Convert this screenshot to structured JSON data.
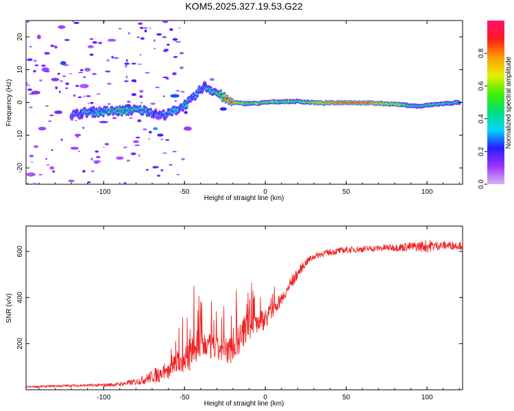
{
  "title": "KOM5.2025.327.19.53.G22",
  "chart_data": [
    {
      "type": "heatmap",
      "name": "spectrogram",
      "xlabel": "Height of straight line (km)",
      "ylabel": "Frequency (Hz)",
      "xlim": [
        -148,
        122
      ],
      "ylim": [
        -25,
        25
      ],
      "xticks": [
        -100,
        -50,
        0,
        50,
        100
      ],
      "yticks": [
        -20,
        -10,
        0,
        10,
        20
      ],
      "colorbar": {
        "label": "Normalized spectral amplitude",
        "range": [
          0,
          1
        ],
        "ticks": [
          "0.0",
          "0.2",
          "0.4",
          "0.6",
          "0.8"
        ],
        "stops": [
          "#d4b6f2",
          "#9a34ff",
          "#2a1cff",
          "#00d8ff",
          "#00e07a",
          "#44f000",
          "#e8f000",
          "#ff9a00",
          "#ff1a1a",
          "#ff1070"
        ]
      },
      "main_trace": [
        {
          "x": -120,
          "f": -3.9,
          "a": 0.25
        },
        {
          "x": -110,
          "f": -3.0,
          "a": 0.35
        },
        {
          "x": -100,
          "f": -2.8,
          "a": 0.4
        },
        {
          "x": -90,
          "f": -2.6,
          "a": 0.45
        },
        {
          "x": -80,
          "f": -2.3,
          "a": 0.4
        },
        {
          "x": -72,
          "f": -2.6,
          "a": 0.35
        },
        {
          "x": -66,
          "f": -4.0,
          "a": 0.25
        },
        {
          "x": -60,
          "f": -3.5,
          "a": 0.3
        },
        {
          "x": -52,
          "f": -1.5,
          "a": 0.4
        },
        {
          "x": -45,
          "f": 1.0,
          "a": 0.35
        },
        {
          "x": -38,
          "f": 5.0,
          "a": 0.3
        },
        {
          "x": -30,
          "f": 3.0,
          "a": 0.45
        },
        {
          "x": -22,
          "f": 0.2,
          "a": 0.85
        },
        {
          "x": -15,
          "f": -0.3,
          "a": 0.6
        },
        {
          "x": -5,
          "f": -0.3,
          "a": 0.55
        },
        {
          "x": 5,
          "f": 0.2,
          "a": 0.55
        },
        {
          "x": 20,
          "f": 0.3,
          "a": 0.5
        },
        {
          "x": 35,
          "f": -0.2,
          "a": 0.7
        },
        {
          "x": 50,
          "f": 0.0,
          "a": 0.95
        },
        {
          "x": 65,
          "f": -0.2,
          "a": 0.85
        },
        {
          "x": 80,
          "f": -0.5,
          "a": 0.6
        },
        {
          "x": 95,
          "f": -1.2,
          "a": 0.4
        },
        {
          "x": 105,
          "f": -0.6,
          "a": 0.45
        },
        {
          "x": 120,
          "f": 0.0,
          "a": 0.35
        }
      ],
      "scatter_blobs": [
        {
          "x": -140,
          "f": 20,
          "a": 0.1
        },
        {
          "x": -135,
          "f": 15,
          "a": 0.15
        },
        {
          "x": -130,
          "f": 7,
          "a": 0.12
        },
        {
          "x": -125,
          "f": 12,
          "a": 0.25
        },
        {
          "x": -128,
          "f": -3,
          "a": 0.15
        },
        {
          "x": -138,
          "f": -8,
          "a": 0.1
        },
        {
          "x": -118,
          "f": -14,
          "a": 0.1
        },
        {
          "x": -110,
          "f": 10,
          "a": 0.08
        },
        {
          "x": -104,
          "f": -18,
          "a": 0.08
        },
        {
          "x": -90,
          "f": -17,
          "a": 0.08
        },
        {
          "x": -145,
          "f": -22,
          "a": 0.08
        },
        {
          "x": -132,
          "f": -20,
          "a": 0.08
        },
        {
          "x": -142,
          "f": 3,
          "a": 0.12
        },
        {
          "x": -126,
          "f": 23,
          "a": 0.1
        },
        {
          "x": -112,
          "f": 5,
          "a": 0.08
        },
        {
          "x": -80,
          "f": -12,
          "a": 0.08
        },
        {
          "x": -95,
          "f": 19,
          "a": 0.08
        },
        {
          "x": -68,
          "f": -8,
          "a": 0.3
        },
        {
          "x": -65,
          "f": -10,
          "a": 0.2
        },
        {
          "x": -56,
          "f": 2,
          "a": 0.25
        },
        {
          "x": -48,
          "f": -8,
          "a": 0.1
        },
        {
          "x": -33,
          "f": 7,
          "a": 0.08
        },
        {
          "x": -26,
          "f": -2,
          "a": 0.2
        },
        {
          "x": -120,
          "f": -24,
          "a": 0.08
        },
        {
          "x": -100,
          "f": -6,
          "a": 0.15
        },
        {
          "x": -85,
          "f": -1,
          "a": 0.2
        },
        {
          "x": -136,
          "f": 10,
          "a": 0.1
        },
        {
          "x": -146,
          "f": 13,
          "a": 0.08
        },
        {
          "x": -116,
          "f": -10,
          "a": 0.1
        },
        {
          "x": -108,
          "f": 17,
          "a": 0.08
        }
      ]
    },
    {
      "type": "line",
      "name": "snr",
      "xlabel": "Height of straight line (km)",
      "ylabel": "SNR (v/v)",
      "xlim": [
        -148,
        122
      ],
      "ylim": [
        0,
        710
      ],
      "xticks": [
        -100,
        -50,
        0,
        50,
        100
      ],
      "yticks": [
        200,
        400,
        600
      ],
      "color": "#ee2222",
      "series": [
        {
          "name": "SNR",
          "x": [
            -148,
            -140,
            -130,
            -120,
            -110,
            -100,
            -90,
            -80,
            -75,
            -70,
            -65,
            -60,
            -56,
            -52,
            -48,
            -44,
            -40,
            -37,
            -34,
            -30,
            -26,
            -22,
            -19,
            -16,
            -13,
            -10,
            -7,
            -4,
            -1,
            2,
            5,
            8,
            11,
            14,
            17,
            20,
            23,
            26,
            30,
            35,
            40,
            45,
            50,
            55,
            60,
            65,
            70,
            75,
            80,
            85,
            90,
            95,
            98,
            100,
            103,
            106,
            110,
            114,
            118,
            122
          ],
          "y": [
            12,
            14,
            16,
            18,
            19,
            20,
            24,
            34,
            44,
            58,
            70,
            82,
            118,
            136,
            156,
            182,
            200,
            206,
            196,
            186,
            178,
            186,
            206,
            232,
            262,
            278,
            296,
            306,
            314,
            332,
            360,
            382,
            410,
            442,
            472,
            504,
            534,
            558,
            578,
            590,
            596,
            602,
            606,
            608,
            610,
            612,
            614,
            616,
            617,
            618,
            620,
            622,
            623,
            624,
            624,
            625,
            626,
            626,
            626,
            626
          ],
          "noise": [
            4,
            5,
            5,
            6,
            6,
            7,
            9,
            14,
            20,
            28,
            40,
            60,
            80,
            120,
            160,
            150,
            130,
            120,
            110,
            100,
            110,
            120,
            130,
            140,
            120,
            110,
            100,
            95,
            90,
            80,
            70,
            60,
            50,
            40,
            30,
            22,
            18,
            16,
            14,
            14,
            14,
            14,
            14,
            14,
            14,
            14,
            14,
            15,
            16,
            18,
            20,
            22,
            24,
            30,
            24,
            20,
            18,
            18,
            18,
            18
          ]
        }
      ]
    }
  ]
}
